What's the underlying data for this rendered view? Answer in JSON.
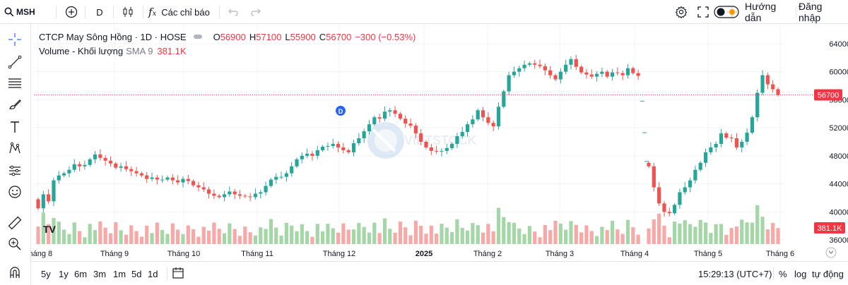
{
  "toolbar": {
    "symbol": "MSH",
    "interval": "D",
    "indicators_label": "Các chỉ báo",
    "guide_label": "Hướng dẫn",
    "login_label": "Đăng nhập"
  },
  "legend": {
    "symbol_name": "CTCP May Sông Hồng · 1D · HOSE",
    "open_key": "O",
    "open_val": "56900",
    "high_key": "H",
    "high_val": "57100",
    "low_key": "L",
    "low_val": "55900",
    "close_key": "C",
    "close_val": "56700",
    "change": "−300 (−0.53%)",
    "volume_label": "Volume - Khối lượng",
    "volume_sma": "SMA 9",
    "volume_value": "381.1K"
  },
  "bottom": {
    "ranges": [
      "5y",
      "1y",
      "6m",
      "3m",
      "1m",
      "5d",
      "1d"
    ],
    "time": "15:29:13 (UTC+7)",
    "percent": "%",
    "log": "log",
    "auto": "tự động"
  },
  "colors": {
    "up": "#26a69a",
    "down": "#ef5350",
    "vol_up": "#a5d6a7",
    "vol_down": "#f7a9a7",
    "price_line": "#f23645",
    "accent": "#2962ff"
  },
  "chart_data": {
    "type": "candlestick",
    "title": "CTCP May Sông Hồng · 1D · HOSE",
    "y_axis": {
      "ticks": [
        36000,
        40000,
        44000,
        48000,
        52000,
        56000,
        60000,
        64000
      ],
      "range": [
        35400,
        64800
      ]
    },
    "x_axis": {
      "tick_labels": [
        "Tháng 8",
        "Tháng 9",
        "Tháng 10",
        "Tháng 11",
        "Tháng 12",
        "2025",
        "Tháng 2",
        "Tháng 3",
        "Tháng 4",
        "Tháng 5",
        "Tháng 6"
      ]
    },
    "last_price": 56700,
    "last_price_label": "56700",
    "volume_label": "381.1K",
    "marker_label": "D",
    "close_series": [
      40500,
      42500,
      41500,
      44500,
      45200,
      45500,
      46000,
      46800,
      46500,
      46700,
      47500,
      48200,
      47700,
      47300,
      46900,
      46300,
      46500,
      46100,
      45800,
      45500,
      45200,
      44700,
      44900,
      44600,
      44600,
      44900,
      44500,
      44200,
      44700,
      44400,
      43800,
      43500,
      43200,
      42600,
      42300,
      42100,
      42500,
      42900,
      42500,
      42300,
      42200,
      42100,
      42600,
      42800,
      43700,
      44600,
      45000,
      45000,
      45500,
      46500,
      47500,
      48000,
      48300,
      48000,
      48800,
      49300,
      49400,
      49700,
      49200,
      48800,
      48500,
      49800,
      50500,
      51500,
      52500,
      53500,
      53300,
      54300,
      54500,
      54000,
      53300,
      52600,
      52300,
      51200,
      50000,
      49200,
      48700,
      48600,
      48700,
      49100,
      49700,
      50800,
      51400,
      52500,
      53200,
      54500,
      53500,
      52700,
      52200,
      55000,
      57200,
      59500,
      60000,
      60500,
      61000,
      61200,
      61000,
      60800,
      60200,
      59500,
      58900,
      60000,
      61000,
      61800,
      60700,
      59900,
      59600,
      59300,
      59700,
      60000,
      59300,
      59900,
      59800,
      59500,
      60500,
      59800,
      59400
    ],
    "gap_markers": [
      55800,
      51300,
      47200
    ],
    "close_series_2": [
      46500,
      43500,
      41200,
      40000,
      39800,
      41000,
      42800,
      43500,
      44500,
      46000,
      47000,
      48500,
      49200,
      49700,
      51200,
      50600,
      50500,
      49200,
      50000,
      51300,
      53500,
      57000,
      59500,
      58200,
      57500,
      56700
    ]
  }
}
